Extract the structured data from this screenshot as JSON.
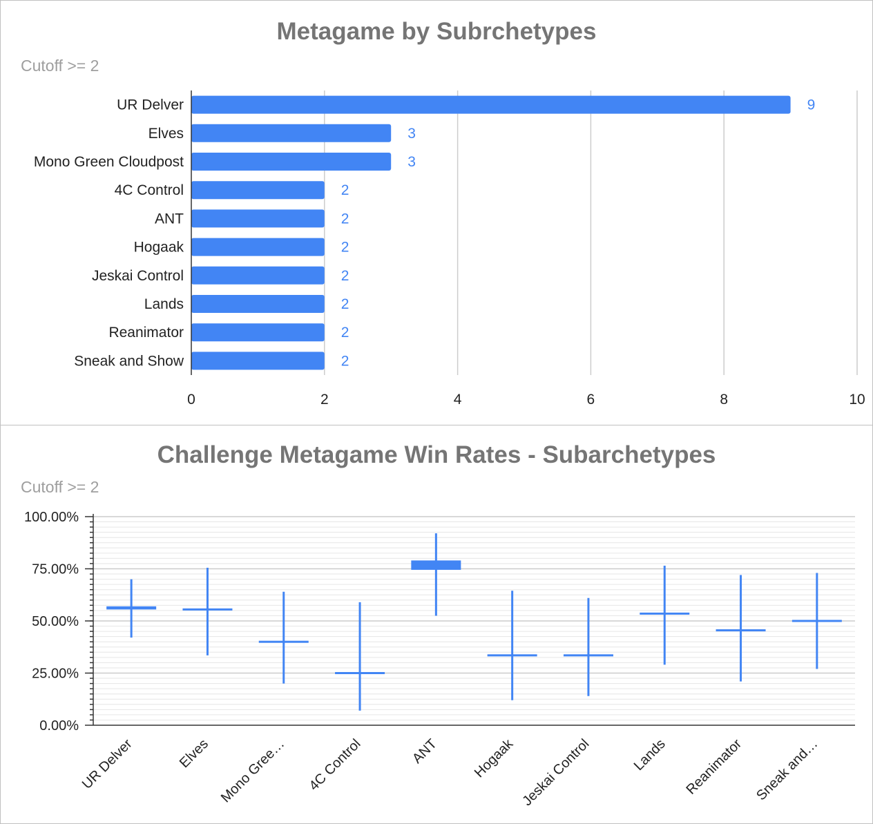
{
  "chart_data": [
    {
      "type": "bar",
      "orientation": "horizontal",
      "title": "Metagame by Subrchetypes",
      "subtitle": "Cutoff >= 2",
      "categories": [
        "UR Delver",
        "Elves",
        "Mono Green Cloudpost",
        "4C Control",
        "ANT",
        "Hogaak",
        "Jeskai Control",
        "Lands",
        "Reanimator",
        "Sneak and Show"
      ],
      "values": [
        9,
        3,
        3,
        2,
        2,
        2,
        2,
        2,
        2,
        2
      ],
      "data_labels": [
        "9",
        "3",
        "3",
        "2",
        "2",
        "2",
        "2",
        "2",
        "2",
        "2"
      ],
      "xlim": [
        0,
        10
      ],
      "x_ticks": [
        0,
        2,
        4,
        6,
        8,
        10
      ],
      "x_tick_labels": [
        "0",
        "2",
        "4",
        "6",
        "8",
        "10"
      ],
      "grid": true,
      "color": "#4285f4"
    },
    {
      "type": "candlestick",
      "title": "Challenge Metagame Win Rates - Subarchetypes",
      "subtitle": "Cutoff >= 2",
      "categories": [
        "UR Delver",
        "Elves",
        "Mono Gree…",
        "4C Control",
        "ANT",
        "Hogaak",
        "Jeskai Control",
        "Lands",
        "Reanimator",
        "Sneak and…"
      ],
      "low": [
        42,
        33.5,
        20,
        7,
        52.5,
        12,
        14,
        29,
        21,
        27
      ],
      "high": [
        70,
        75.5,
        64,
        59,
        92,
        64.5,
        61,
        76.5,
        72,
        73
      ],
      "open": [
        55.5,
        55,
        39.5,
        24.5,
        74.5,
        33,
        33,
        53,
        45,
        49.5
      ],
      "close": [
        57,
        56,
        40.5,
        25.5,
        79,
        34,
        34,
        54,
        46,
        50.5
      ],
      "ylim": [
        0,
        100
      ],
      "y_ticks": [
        0,
        25,
        50,
        75,
        100
      ],
      "y_tick_labels": [
        "0.00%",
        "25.00%",
        "50.00%",
        "75.00%",
        "100.00%"
      ],
      "minor_grid_step": 2.5,
      "grid": true,
      "color": "#4285f4"
    }
  ]
}
